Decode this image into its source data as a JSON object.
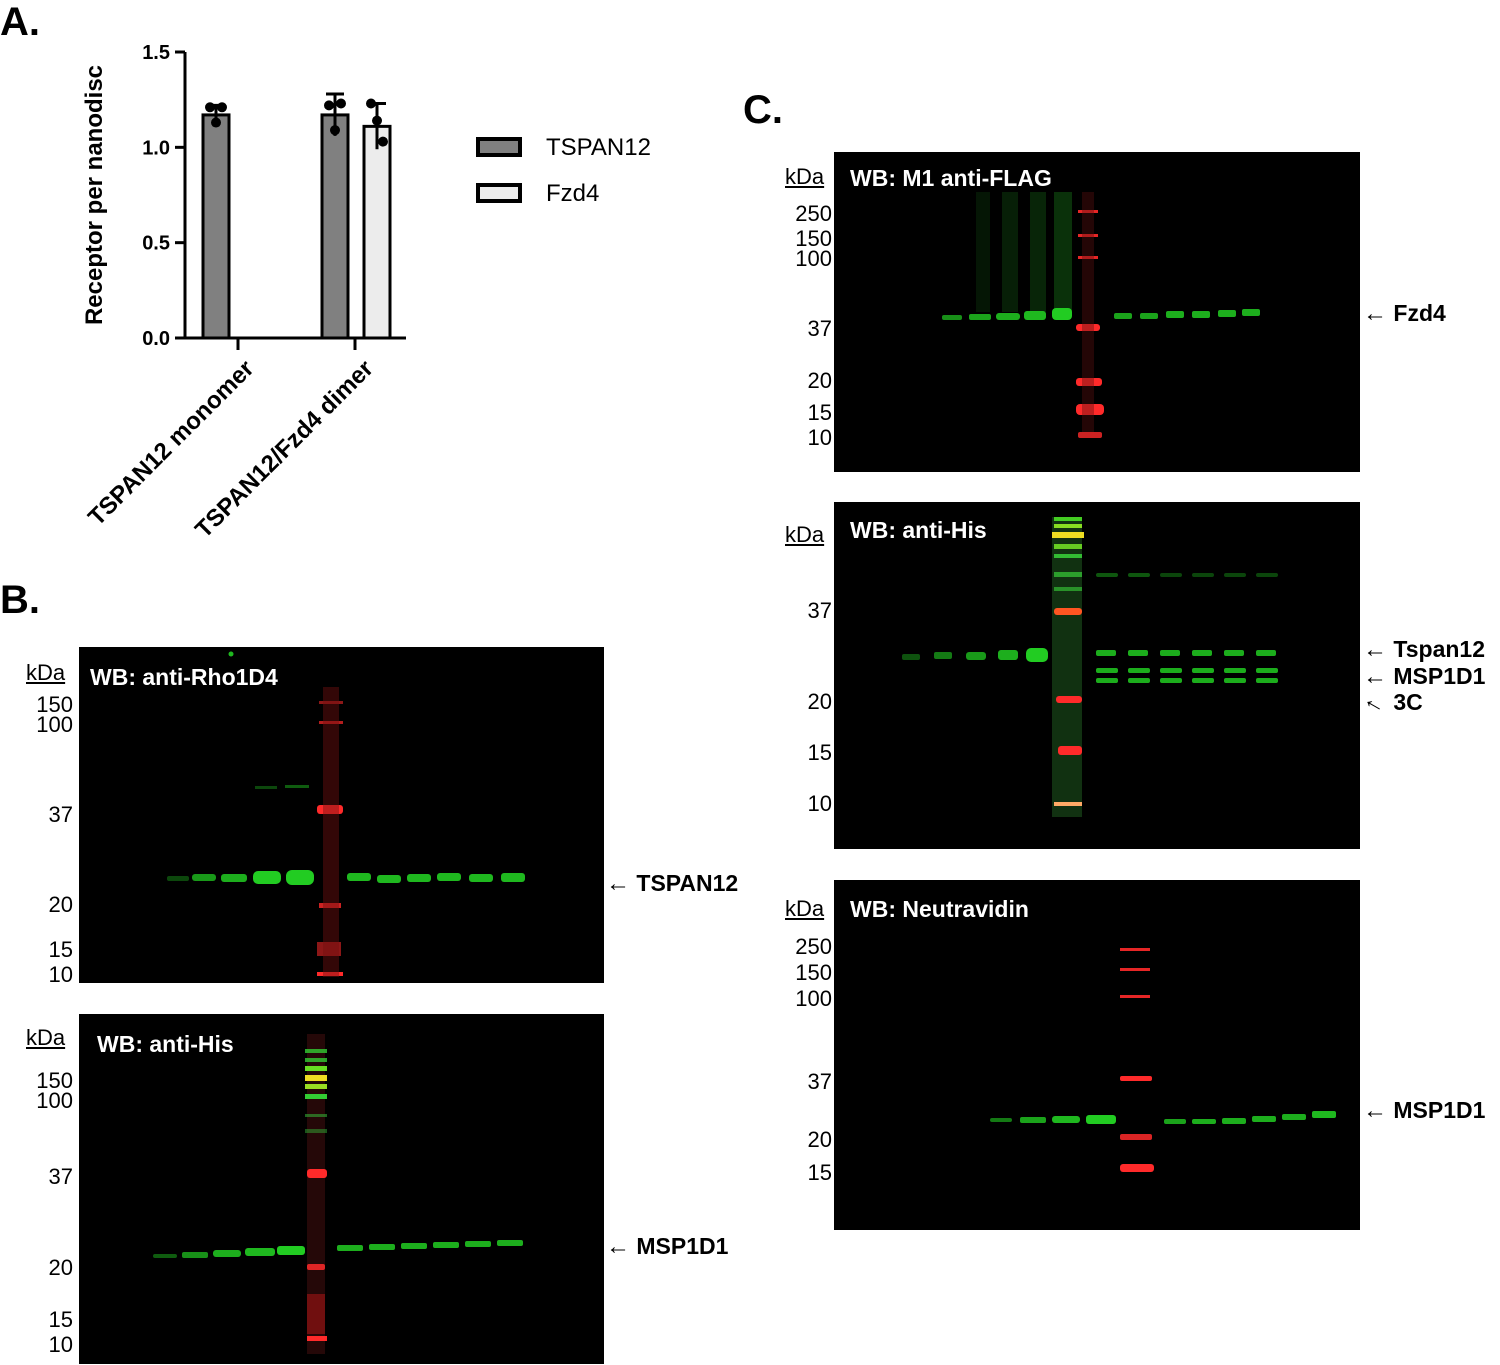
{
  "panels": {
    "a": "A.",
    "b": "B.",
    "c": "C."
  },
  "chart_data": {
    "type": "bar",
    "ylabel": "Receptor per nanodisc",
    "ylim": [
      0,
      1.5
    ],
    "yticks": [
      "0.0",
      "0.5",
      "1.0",
      "1.5"
    ],
    "categories": [
      "TSPAN12 monomer",
      "TSPAN12/Fzd4 dimer"
    ],
    "series": [
      {
        "name": "TSPAN12",
        "color": "#808080",
        "values": [
          1.17,
          1.17
        ],
        "errors": [
          0.05,
          0.11
        ],
        "points": [
          [
            1.21,
            1.13,
            1.21
          ],
          [
            1.22,
            1.09,
            1.23
          ]
        ]
      },
      {
        "name": "Fzd4",
        "color": "#ececec",
        "values": [
          null,
          1.11
        ],
        "errors": [
          null,
          0.12
        ],
        "points": [
          null,
          [
            1.23,
            1.14,
            1.03
          ]
        ]
      }
    ],
    "legend_position": "right"
  },
  "blots": {
    "b_rho": {
      "title": "WB: anti-Rho1D4",
      "kda_header": "kDa",
      "markers": [
        "150",
        "100",
        "37",
        "20",
        "15",
        "10"
      ],
      "band_label": "TSPAN12"
    },
    "b_his": {
      "title": "WB: anti-His",
      "kda_header": "kDa",
      "markers": [
        "150",
        "100",
        "37",
        "20",
        "15",
        "10"
      ],
      "band_label": "MSP1D1"
    },
    "c_flag": {
      "title": "WB: M1 anti-FLAG",
      "kda_header": "kDa",
      "markers": [
        "250",
        "150",
        "100",
        "37",
        "20",
        "15",
        "10"
      ],
      "band_label": "Fzd4"
    },
    "c_his": {
      "title": "WB: anti-His",
      "kda_header": "kDa",
      "markers": [
        "37",
        "20",
        "15",
        "10"
      ],
      "band_labels": [
        "Tspan12",
        "MSP1D1",
        "3C"
      ]
    },
    "c_neutra": {
      "title": "WB: Neutravidin",
      "kda_header": "kDa",
      "markers": [
        "250",
        "150",
        "100",
        "37",
        "20",
        "15"
      ],
      "band_label": "MSP1D1"
    }
  },
  "colors": {
    "band_green": "#22dd22",
    "ladder_red": "#ff2222",
    "ladder_yellow": "#ffee33"
  }
}
